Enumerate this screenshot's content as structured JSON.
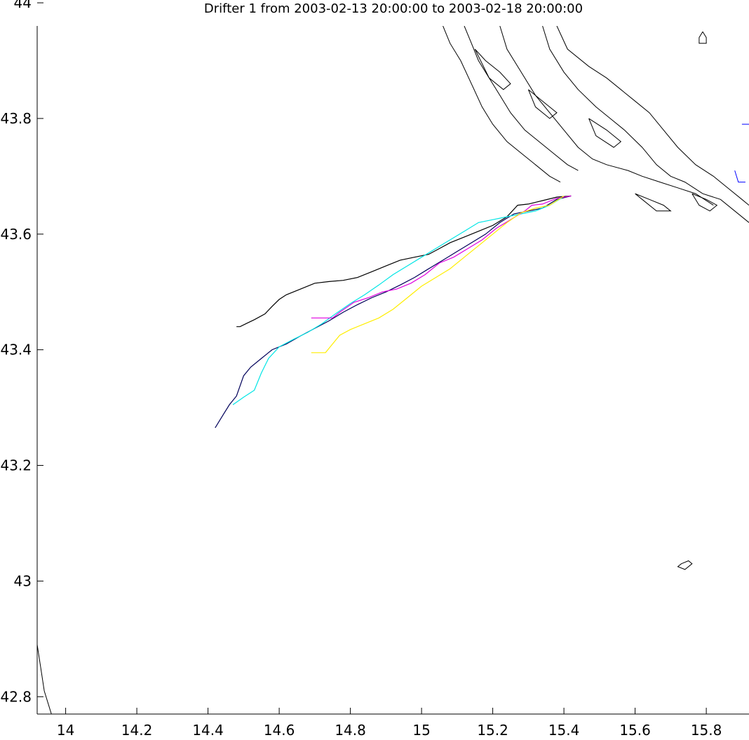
{
  "chart_data": {
    "type": "line",
    "title": "Drifter 1 from 2003-02-13 20:00:00 to 2003-02-18 20:00:00",
    "xlabel": "",
    "ylabel": "",
    "xlim": [
      13.92,
      15.92
    ],
    "ylim": [
      42.77,
      43.96
    ],
    "x_ticks": [
      "14",
      "14.2",
      "14.4",
      "14.6",
      "14.8",
      "15",
      "15.2",
      "15.4",
      "15.6",
      "15.8"
    ],
    "y_ticks": [
      "42.8",
      "43",
      "43.2",
      "43.4",
      "43.6",
      "43.8",
      "44"
    ],
    "grid": false,
    "colors": {
      "coastline": "#000000",
      "black_track": "#000000",
      "navy_track": "#00005a",
      "cyan_track": "#00e5e5",
      "magenta_track": "#e000e0",
      "yellow_track": "#ffee00",
      "blue_mark": "#0000ff"
    },
    "series": [
      {
        "color": "#000000",
        "points": [
          [
            15.42,
            43.666
          ],
          [
            15.38,
            43.664
          ],
          [
            15.34,
            43.658
          ],
          [
            15.3,
            43.652
          ],
          [
            15.27,
            43.65
          ],
          [
            15.24,
            43.63
          ],
          [
            15.2,
            43.615
          ],
          [
            15.16,
            43.605
          ],
          [
            15.12,
            43.595
          ],
          [
            15.08,
            43.585
          ],
          [
            15.05,
            43.575
          ],
          [
            15.02,
            43.565
          ],
          [
            14.98,
            43.56
          ],
          [
            14.94,
            43.555
          ],
          [
            14.9,
            43.545
          ],
          [
            14.86,
            43.535
          ],
          [
            14.82,
            43.525
          ],
          [
            14.78,
            43.52
          ],
          [
            14.74,
            43.518
          ],
          [
            14.7,
            43.515
          ],
          [
            14.66,
            43.505
          ],
          [
            14.62,
            43.495
          ],
          [
            14.6,
            43.487
          ],
          [
            14.58,
            43.475
          ],
          [
            14.56,
            43.462
          ],
          [
            14.53,
            43.452
          ],
          [
            14.51,
            43.446
          ],
          [
            14.49,
            43.44
          ],
          [
            14.48,
            43.44
          ]
        ]
      },
      {
        "color": "#00005a",
        "points": [
          [
            15.42,
            43.666
          ],
          [
            15.38,
            43.66
          ],
          [
            15.34,
            43.645
          ],
          [
            15.3,
            43.64
          ],
          [
            15.26,
            43.635
          ],
          [
            15.22,
            43.62
          ],
          [
            15.18,
            43.6
          ],
          [
            15.14,
            43.585
          ],
          [
            15.1,
            43.57
          ],
          [
            15.06,
            43.555
          ],
          [
            15.02,
            43.54
          ],
          [
            14.98,
            43.525
          ],
          [
            14.94,
            43.512
          ],
          [
            14.9,
            43.5
          ],
          [
            14.86,
            43.49
          ],
          [
            14.82,
            43.478
          ],
          [
            14.78,
            43.465
          ],
          [
            14.74,
            43.45
          ],
          [
            14.7,
            43.437
          ],
          [
            14.66,
            43.424
          ],
          [
            14.62,
            43.41
          ],
          [
            14.58,
            43.4
          ],
          [
            14.55,
            43.385
          ],
          [
            14.52,
            43.37
          ],
          [
            14.5,
            43.355
          ],
          [
            14.48,
            43.32
          ],
          [
            14.46,
            43.305
          ],
          [
            14.44,
            43.285
          ],
          [
            14.42,
            43.265
          ]
        ]
      },
      {
        "color": "#00e5e5",
        "points": [
          [
            15.4,
            43.665
          ],
          [
            15.36,
            43.65
          ],
          [
            15.32,
            43.64
          ],
          [
            15.28,
            43.635
          ],
          [
            15.24,
            43.63
          ],
          [
            15.2,
            43.625
          ],
          [
            15.16,
            43.62
          ],
          [
            15.12,
            43.605
          ],
          [
            15.08,
            43.59
          ],
          [
            15.04,
            43.575
          ],
          [
            15.0,
            43.56
          ],
          [
            14.96,
            43.545
          ],
          [
            14.92,
            43.53
          ],
          [
            14.88,
            43.512
          ],
          [
            14.84,
            43.495
          ],
          [
            14.8,
            43.48
          ],
          [
            14.76,
            43.463
          ],
          [
            14.72,
            43.445
          ],
          [
            14.68,
            43.43
          ],
          [
            14.64,
            43.418
          ],
          [
            14.6,
            43.405
          ],
          [
            14.57,
            43.385
          ],
          [
            14.55,
            43.36
          ],
          [
            14.53,
            43.33
          ],
          [
            14.5,
            43.318
          ],
          [
            14.47,
            43.305
          ]
        ]
      },
      {
        "color": "#e000e0",
        "points": [
          [
            15.42,
            43.666
          ],
          [
            15.38,
            43.662
          ],
          [
            15.34,
            43.652
          ],
          [
            15.31,
            43.65
          ],
          [
            15.29,
            43.64
          ],
          [
            15.25,
            43.625
          ],
          [
            15.21,
            43.61
          ],
          [
            15.17,
            43.59
          ],
          [
            15.13,
            43.575
          ],
          [
            15.09,
            43.56
          ],
          [
            15.05,
            43.55
          ],
          [
            15.01,
            43.53
          ],
          [
            14.97,
            43.515
          ],
          [
            14.93,
            43.505
          ],
          [
            14.89,
            43.5
          ],
          [
            14.85,
            43.49
          ],
          [
            14.81,
            43.482
          ],
          [
            14.77,
            43.465
          ],
          [
            14.75,
            43.455
          ],
          [
            14.72,
            43.455
          ],
          [
            14.69,
            43.455
          ]
        ]
      },
      {
        "color": "#ffee00",
        "points": [
          [
            15.4,
            43.666
          ],
          [
            15.36,
            43.65
          ],
          [
            15.32,
            43.645
          ],
          [
            15.28,
            43.637
          ],
          [
            15.24,
            43.62
          ],
          [
            15.2,
            43.6
          ],
          [
            15.16,
            43.58
          ],
          [
            15.12,
            43.56
          ],
          [
            15.08,
            43.54
          ],
          [
            15.04,
            43.525
          ],
          [
            15.0,
            43.51
          ],
          [
            14.96,
            43.49
          ],
          [
            14.92,
            43.47
          ],
          [
            14.88,
            43.455
          ],
          [
            14.84,
            43.445
          ],
          [
            14.8,
            43.435
          ],
          [
            14.77,
            43.425
          ],
          [
            14.75,
            43.41
          ],
          [
            14.73,
            43.395
          ],
          [
            14.69,
            43.395
          ]
        ]
      }
    ],
    "coastline": [
      [
        [
          15.38,
          43.96
        ],
        [
          15.41,
          43.92
        ],
        [
          15.47,
          43.89
        ],
        [
          15.52,
          43.87
        ],
        [
          15.56,
          43.85
        ],
        [
          15.6,
          43.83
        ],
        [
          15.64,
          43.81
        ],
        [
          15.68,
          43.78
        ],
        [
          15.72,
          43.75
        ],
        [
          15.77,
          43.72
        ],
        [
          15.82,
          43.7
        ],
        [
          15.86,
          43.68
        ],
        [
          15.9,
          43.66
        ],
        [
          15.92,
          43.65
        ]
      ],
      [
        [
          15.34,
          43.96
        ],
        [
          15.36,
          43.92
        ],
        [
          15.4,
          43.88
        ],
        [
          15.44,
          43.85
        ],
        [
          15.49,
          43.82
        ],
        [
          15.53,
          43.8
        ],
        [
          15.57,
          43.78
        ],
        [
          15.62,
          43.75
        ],
        [
          15.66,
          43.72
        ],
        [
          15.7,
          43.7
        ],
        [
          15.74,
          43.69
        ],
        [
          15.79,
          43.67
        ],
        [
          15.84,
          43.66
        ],
        [
          15.88,
          43.64
        ],
        [
          15.92,
          43.62
        ]
      ],
      [
        [
          15.22,
          43.96
        ],
        [
          15.24,
          43.92
        ],
        [
          15.28,
          43.88
        ],
        [
          15.32,
          43.84
        ],
        [
          15.36,
          43.81
        ],
        [
          15.4,
          43.78
        ],
        [
          15.44,
          43.75
        ],
        [
          15.48,
          43.73
        ],
        [
          15.52,
          43.72
        ],
        [
          15.58,
          43.71
        ],
        [
          15.62,
          43.7
        ],
        [
          15.67,
          43.69
        ],
        [
          15.72,
          43.68
        ],
        [
          15.77,
          43.67
        ],
        [
          15.82,
          43.65
        ]
      ],
      [
        [
          15.12,
          43.96
        ],
        [
          15.14,
          43.93
        ],
        [
          15.16,
          43.9
        ],
        [
          15.19,
          43.87
        ],
        [
          15.22,
          43.84
        ],
        [
          15.25,
          43.81
        ],
        [
          15.29,
          43.78
        ],
        [
          15.33,
          43.76
        ],
        [
          15.37,
          43.74
        ],
        [
          15.41,
          43.72
        ],
        [
          15.44,
          43.71
        ]
      ],
      [
        [
          15.06,
          43.96
        ],
        [
          15.08,
          43.93
        ],
        [
          15.11,
          43.9
        ],
        [
          15.14,
          43.86
        ],
        [
          15.17,
          43.82
        ],
        [
          15.2,
          43.79
        ],
        [
          15.24,
          43.76
        ],
        [
          15.28,
          43.74
        ],
        [
          15.32,
          43.72
        ],
        [
          15.36,
          43.7
        ],
        [
          15.39,
          43.69
        ]
      ],
      [
        [
          15.15,
          43.92
        ],
        [
          15.18,
          43.9
        ],
        [
          15.22,
          43.88
        ],
        [
          15.25,
          43.86
        ],
        [
          15.23,
          43.85
        ],
        [
          15.19,
          43.87
        ],
        [
          15.15,
          43.92
        ]
      ],
      [
        [
          15.3,
          43.85
        ],
        [
          15.34,
          43.83
        ],
        [
          15.38,
          43.81
        ],
        [
          15.36,
          43.8
        ],
        [
          15.32,
          43.82
        ],
        [
          15.3,
          43.85
        ]
      ],
      [
        [
          15.47,
          43.8
        ],
        [
          15.52,
          43.78
        ],
        [
          15.56,
          43.76
        ],
        [
          15.54,
          43.75
        ],
        [
          15.49,
          43.77
        ],
        [
          15.47,
          43.8
        ]
      ],
      [
        [
          15.6,
          43.67
        ],
        [
          15.64,
          43.66
        ],
        [
          15.68,
          43.65
        ],
        [
          15.7,
          43.64
        ],
        [
          15.66,
          43.64
        ],
        [
          15.62,
          43.66
        ],
        [
          15.6,
          43.67
        ]
      ],
      [
        [
          15.76,
          43.67
        ],
        [
          15.8,
          43.66
        ],
        [
          15.83,
          43.65
        ],
        [
          15.81,
          43.64
        ],
        [
          15.78,
          43.65
        ],
        [
          15.76,
          43.67
        ]
      ],
      [
        [
          15.79,
          43.95
        ],
        [
          15.8,
          43.94
        ],
        [
          15.8,
          43.93
        ],
        [
          15.78,
          43.93
        ],
        [
          15.78,
          43.94
        ],
        [
          15.79,
          43.95
        ]
      ],
      [
        [
          15.73,
          43.03
        ],
        [
          15.75,
          43.035
        ],
        [
          15.76,
          43.03
        ],
        [
          15.74,
          43.02
        ],
        [
          15.72,
          43.025
        ],
        [
          15.73,
          43.03
        ]
      ],
      [
        [
          13.92,
          42.89
        ],
        [
          13.93,
          42.85
        ],
        [
          13.94,
          42.81
        ],
        [
          13.96,
          42.77
        ]
      ]
    ],
    "blue_marks": [
      [
        [
          15.9,
          43.79
        ],
        [
          15.92,
          43.79
        ]
      ],
      [
        [
          15.88,
          43.71
        ],
        [
          15.89,
          43.69
        ],
        [
          15.91,
          43.69
        ]
      ]
    ]
  }
}
